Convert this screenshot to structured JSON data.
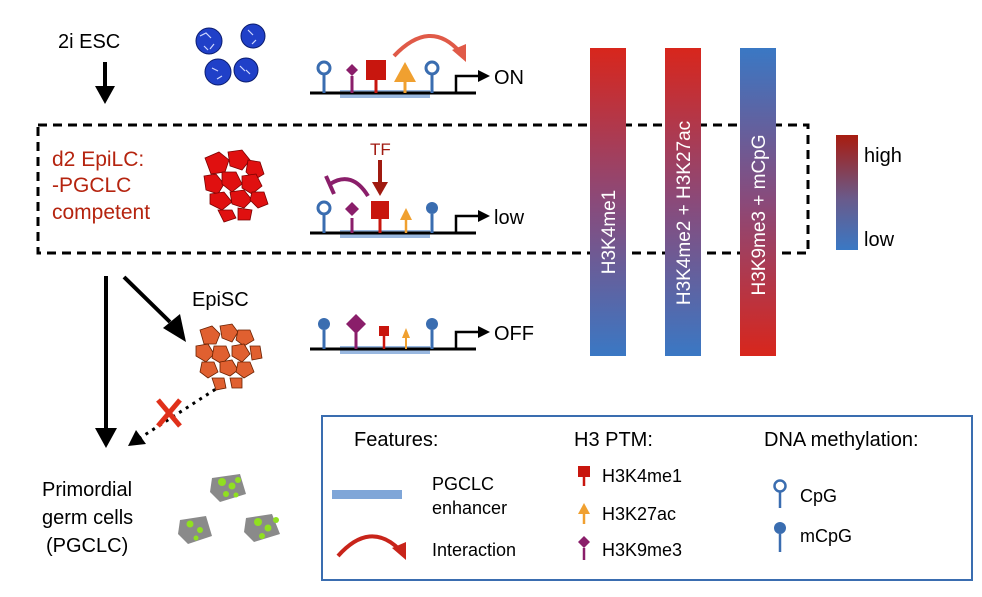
{
  "stages": {
    "esc": "2i ESC",
    "epilc_line1": "d2 EpiLC:",
    "epilc_line2": "-PGCLC",
    "epilc_line3": "competent",
    "episc": "EpiSC",
    "pgc_line1": "Primordial",
    "pgc_line2": "germ cells",
    "pgc_line3": "(PGCLC)"
  },
  "states": {
    "on": "ON",
    "low": "low",
    "off": "OFF"
  },
  "tf_label": "TF",
  "bars": [
    {
      "label": "H3K4me1",
      "gradient": "red-to-blue"
    },
    {
      "label": "H3K4me2 + H3K27ac",
      "gradient": "red-to-blue"
    },
    {
      "label": "H3K9me3 + mCpG",
      "gradient": "blue-to-red"
    }
  ],
  "scale": {
    "high": "high",
    "low": "low"
  },
  "legend": {
    "features_title": "Features:",
    "enhancer_line1": "PGCLC",
    "enhancer_line2": "enhancer",
    "interaction": "Interaction",
    "ptm_title": "H3 PTM:",
    "h3k4me1": "H3K4me1",
    "h3k27ac": "H3K27ac",
    "h3k9me3": "H3K9me3",
    "dna_title": "DNA methylation:",
    "cpg": "CpG",
    "mcpg": "mCpG"
  },
  "colors": {
    "red_text": "#b5240f",
    "high": "#c8241a",
    "low": "#3a77c0",
    "h3k4me1": "#c8160e",
    "h3k27ac": "#f0a030",
    "h3k9me3": "#8a1e6a",
    "cpg": "#3a6db0",
    "esc_cell": "#2040c8",
    "epilc_cell": "#e01010",
    "episc_cell": "#e06030",
    "pgc_cell": "#8a8a8a",
    "pgc_spot": "#90e020"
  }
}
